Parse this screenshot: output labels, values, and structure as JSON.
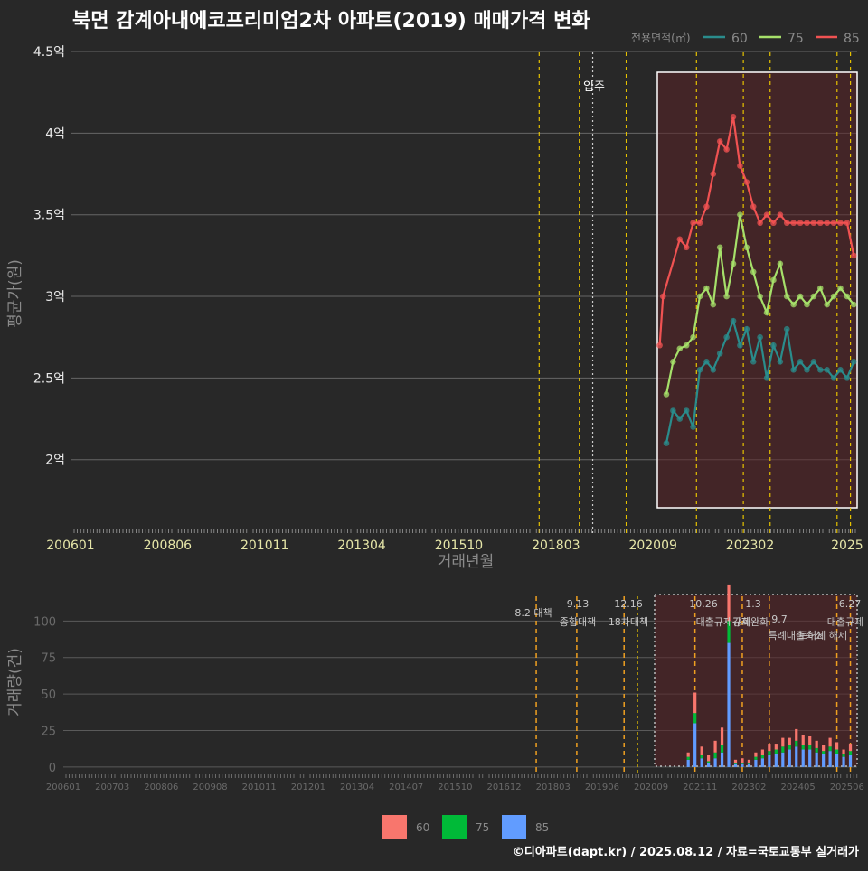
{
  "title": "북면 감계아내에코프리미엄2차 아파트(2019) 매매가격 변화",
  "credit": "©디아파트(dapt.kr) / 2025.08.12 / 자료=국토교통부 실거래가",
  "colors": {
    "s60": "#2a8c8c",
    "s75": "#a6e06a",
    "s85": "#f05252",
    "bar60": "#f8766d",
    "bar75": "#00ba38",
    "bar85": "#619cff",
    "policy": "#e6c200",
    "policyOrange": "#f0a020",
    "highlight": "#5a2226"
  },
  "price_chart": {
    "ylabel": "평균가(원)",
    "xlabel": "거래년월",
    "legend_title": "전용면적(㎡)",
    "legend": [
      "60",
      "75",
      "85"
    ],
    "y_ticks": [
      {
        "v": 2.0,
        "label": "2억"
      },
      {
        "v": 2.5,
        "label": "2.5억"
      },
      {
        "v": 3.0,
        "label": "3억"
      },
      {
        "v": 3.5,
        "label": "3.5억"
      },
      {
        "v": 4.0,
        "label": "4억"
      },
      {
        "v": 4.5,
        "label": "4.5억"
      }
    ],
    "x_ticks": [
      "200601",
      "200806",
      "201011",
      "201304",
      "201510",
      "201803",
      "202009",
      "202302",
      "2025"
    ],
    "ylim": [
      1.55,
      4.55
    ],
    "xlim": [
      0,
      235
    ],
    "annotation": "입주",
    "series": [
      {
        "name": "60",
        "x": [
          178,
          180,
          182,
          184,
          186,
          188,
          190,
          192,
          194,
          196,
          198,
          200,
          202,
          204,
          206,
          208,
          210,
          212,
          214,
          216,
          218,
          220,
          222,
          224,
          226,
          228,
          230,
          232,
          234
        ],
        "values": [
          2.1,
          2.3,
          2.25,
          2.3,
          2.2,
          2.55,
          2.6,
          2.55,
          2.65,
          2.75,
          2.85,
          2.7,
          2.8,
          2.6,
          2.75,
          2.5,
          2.7,
          2.6,
          2.8,
          2.55,
          2.6,
          2.55,
          2.6,
          2.55,
          2.55,
          2.5,
          2.55,
          2.5,
          2.6
        ]
      },
      {
        "name": "75",
        "x": [
          178,
          180,
          182,
          184,
          186,
          188,
          190,
          192,
          194,
          196,
          198,
          200,
          202,
          204,
          206,
          208,
          210,
          212,
          214,
          216,
          218,
          220,
          222,
          224,
          226,
          228,
          230,
          232,
          234
        ],
        "values": [
          2.4,
          2.6,
          2.68,
          2.7,
          2.75,
          3.0,
          3.05,
          2.95,
          3.3,
          3.0,
          3.2,
          3.5,
          3.3,
          3.15,
          3.0,
          2.9,
          3.1,
          3.2,
          3.0,
          2.95,
          3.0,
          2.95,
          3.0,
          3.05,
          2.95,
          3.0,
          3.05,
          3.0,
          2.95
        ]
      },
      {
        "name": "85",
        "x": [
          176,
          177,
          182,
          184,
          186,
          188,
          190,
          192,
          194,
          196,
          198,
          200,
          202,
          204,
          206,
          208,
          210,
          212,
          214,
          216,
          218,
          220,
          222,
          224,
          226,
          228,
          230,
          232,
          234
        ],
        "values": [
          2.7,
          3.0,
          3.35,
          3.3,
          3.45,
          3.45,
          3.55,
          3.75,
          3.95,
          3.9,
          4.1,
          3.8,
          3.7,
          3.55,
          3.45,
          3.5,
          3.45,
          3.5,
          3.45,
          3.45,
          3.45,
          3.45,
          3.45,
          3.45,
          3.45,
          3.45,
          3.45,
          3.45,
          3.25
        ]
      }
    ]
  },
  "volume_chart": {
    "ylabel": "거래량(건)",
    "y_ticks": [
      0,
      25,
      50,
      75,
      100
    ],
    "ylim": [
      -5,
      120
    ],
    "x_ticks": [
      "200601",
      "200703",
      "200806",
      "200908",
      "201011",
      "201201",
      "201304",
      "201407",
      "201510",
      "201612",
      "201803",
      "201906",
      "202009",
      "202111",
      "202302",
      "202405",
      "202506"
    ],
    "legend": [
      "60",
      "75",
      "85"
    ],
    "policies": [
      {
        "date": "8.2",
        "label": "대책"
      },
      {
        "date": "9.13",
        "label": "종합대책"
      },
      {
        "date": "12.16",
        "label": "18차대책"
      },
      {
        "date": "10.26",
        "label": "대출규제강화"
      },
      {
        "date": "1.3",
        "label": "규제완화"
      },
      {
        "date": "9.7",
        "label": "특례대출축소"
      },
      {
        "date": "",
        "label": "토허제 해제"
      },
      {
        "date": "6.27",
        "label": "대출규제"
      }
    ],
    "bars_x": [
      185,
      187,
      189,
      191,
      193,
      195,
      197,
      199,
      201,
      203,
      205,
      207,
      209,
      211,
      213,
      215,
      217,
      219,
      221,
      223,
      225,
      227,
      229,
      231,
      233
    ],
    "bars_60": [
      3,
      14,
      6,
      4,
      8,
      12,
      25,
      2,
      3,
      2,
      3,
      4,
      5,
      4,
      6,
      5,
      8,
      7,
      6,
      5,
      4,
      6,
      5,
      3,
      5
    ],
    "bars_75": [
      2,
      7,
      2,
      1,
      4,
      5,
      15,
      1,
      1,
      1,
      2,
      2,
      3,
      3,
      4,
      3,
      4,
      3,
      3,
      3,
      2,
      3,
      3,
      2,
      3
    ],
    "bars_85": [
      5,
      30,
      6,
      3,
      6,
      10,
      85,
      2,
      2,
      2,
      5,
      6,
      8,
      9,
      10,
      12,
      14,
      12,
      12,
      10,
      9,
      11,
      9,
      7,
      8
    ]
  }
}
